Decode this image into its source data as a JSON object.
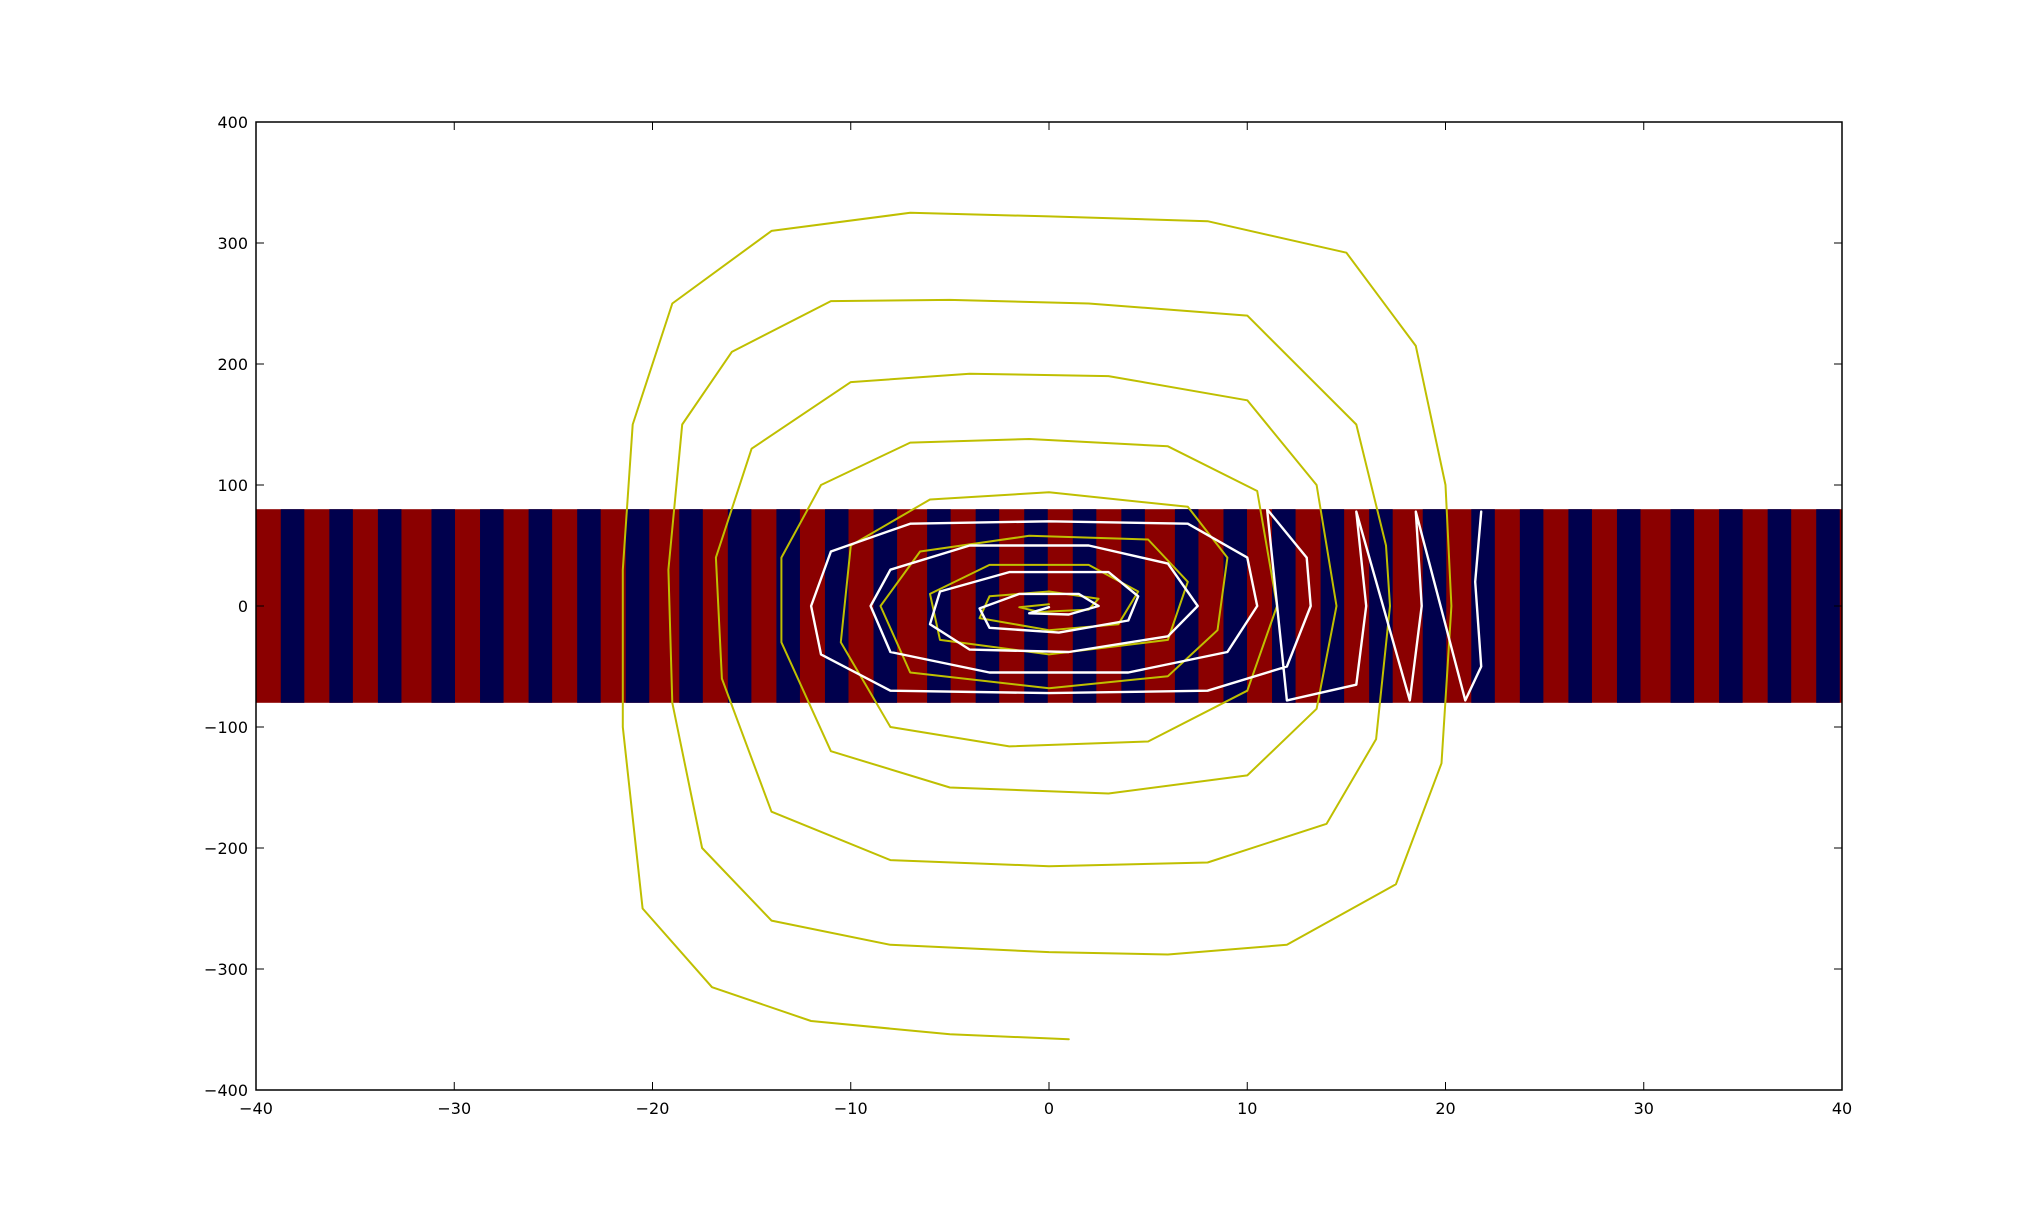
{
  "chart_data": {
    "type": "line",
    "title": "",
    "xlabel": "",
    "ylabel": "",
    "xlim": [
      -40,
      40
    ],
    "ylim": [
      -400,
      400
    ],
    "xticks": [
      -40,
      -30,
      -20,
      -10,
      0,
      10,
      20,
      30,
      40
    ],
    "yticks": [
      -400,
      -300,
      -200,
      -100,
      0,
      100,
      200,
      300,
      400
    ],
    "xtick_labels": [
      "−40",
      "−30",
      "−20",
      "−10",
      "0",
      "10",
      "20",
      "30",
      "40"
    ],
    "ytick_labels": [
      "−400",
      "−300",
      "−200",
      "−100",
      "0",
      "100",
      "200",
      "300",
      "400"
    ],
    "grid": false,
    "background_band": {
      "type": "heatmap",
      "x_range": [
        -40,
        40
      ],
      "y_range": [
        -80,
        80
      ],
      "colors": [
        "#8b0000",
        "#00004d"
      ],
      "pattern": "alternating vertical stripes following the spiral level sets"
    },
    "series": [
      {
        "color": "#bfbf00",
        "kind": "outer spiral",
        "points": [
          [
            1,
            -358
          ],
          [
            -5,
            -354
          ],
          [
            -12,
            -343
          ],
          [
            -17,
            -315
          ],
          [
            -20.5,
            -250
          ],
          [
            -21.5,
            -100
          ],
          [
            -21.5,
            30
          ],
          [
            -21,
            150
          ],
          [
            -19,
            250
          ],
          [
            -14,
            310
          ],
          [
            -7,
            325
          ],
          [
            0,
            322
          ],
          [
            8,
            318
          ],
          [
            15,
            292
          ],
          [
            18.5,
            215
          ],
          [
            20,
            100
          ],
          [
            20.3,
            0
          ],
          [
            19.8,
            -130
          ],
          [
            17.5,
            -230
          ],
          [
            12,
            -280
          ],
          [
            6,
            -288
          ],
          [
            0,
            -286
          ],
          [
            -8,
            -280
          ],
          [
            -14,
            -260
          ],
          [
            -17.5,
            -200
          ],
          [
            -19,
            -80
          ],
          [
            -19.2,
            30
          ],
          [
            -18.5,
            150
          ],
          [
            -16,
            210
          ],
          [
            -11,
            252
          ],
          [
            -5,
            253
          ],
          [
            2,
            250
          ],
          [
            10,
            240
          ],
          [
            15.5,
            150
          ],
          [
            17,
            50
          ],
          [
            17.2,
            0
          ],
          [
            16.5,
            -110
          ],
          [
            14,
            -180
          ],
          [
            8,
            -212
          ],
          [
            0,
            -215
          ],
          [
            -8,
            -210
          ],
          [
            -14,
            -170
          ],
          [
            -16.5,
            -60
          ],
          [
            -16.8,
            40
          ],
          [
            -15,
            130
          ],
          [
            -10,
            185
          ],
          [
            -4,
            192
          ],
          [
            3,
            190
          ],
          [
            10,
            170
          ],
          [
            13.5,
            100
          ],
          [
            14.5,
            0
          ],
          [
            13.5,
            -85
          ],
          [
            10,
            -140
          ],
          [
            3,
            -155
          ],
          [
            -5,
            -150
          ],
          [
            -11,
            -120
          ],
          [
            -13.5,
            -30
          ],
          [
            -13.5,
            40
          ],
          [
            -11.5,
            100
          ],
          [
            -7,
            135
          ],
          [
            -1,
            138
          ],
          [
            6,
            132
          ],
          [
            10.5,
            95
          ],
          [
            11.5,
            0
          ],
          [
            10,
            -70
          ],
          [
            5,
            -112
          ],
          [
            -2,
            -116
          ],
          [
            -8,
            -100
          ],
          [
            -10.5,
            -30
          ],
          [
            -10,
            50
          ],
          [
            -6,
            88
          ],
          [
            0,
            94
          ],
          [
            7,
            82
          ],
          [
            9,
            40
          ],
          [
            8.5,
            -20
          ],
          [
            6,
            -58
          ],
          [
            0,
            -68
          ],
          [
            -7,
            -55
          ],
          [
            -8.5,
            0
          ],
          [
            -6.5,
            45
          ],
          [
            -1,
            58
          ],
          [
            5,
            55
          ],
          [
            7,
            20
          ],
          [
            6,
            -28
          ],
          [
            0,
            -40
          ],
          [
            -5.5,
            -28
          ],
          [
            -6,
            10
          ],
          [
            -3,
            34
          ],
          [
            2,
            34
          ],
          [
            4.5,
            12
          ],
          [
            3.5,
            -15
          ],
          [
            0,
            -20
          ],
          [
            -3.5,
            -10
          ],
          [
            -3,
            8
          ],
          [
            0,
            12
          ],
          [
            2.5,
            6
          ],
          [
            2,
            -3
          ],
          [
            -0.5,
            -5
          ],
          [
            -1.5,
            -1
          ],
          [
            0,
            1.5
          ]
        ]
      },
      {
        "color": "#ffffff",
        "kind": "inner spiral",
        "points": [
          [
            21.8,
            78
          ],
          [
            21.5,
            20
          ],
          [
            21.8,
            -50
          ],
          [
            21,
            -78
          ],
          [
            18.5,
            78
          ],
          [
            18.8,
            0
          ],
          [
            18.2,
            -78
          ],
          [
            15.5,
            78
          ],
          [
            16,
            0
          ],
          [
            15.5,
            -65
          ],
          [
            12,
            -78
          ],
          [
            11,
            80
          ],
          [
            13,
            40
          ],
          [
            13.2,
            0
          ],
          [
            12,
            -50
          ],
          [
            8,
            -70
          ],
          [
            0,
            -72
          ],
          [
            -8,
            -70
          ],
          [
            -11.5,
            -40
          ],
          [
            -12,
            0
          ],
          [
            -11,
            45
          ],
          [
            -7,
            68
          ],
          [
            0,
            70
          ],
          [
            7,
            68
          ],
          [
            10,
            40
          ],
          [
            10.5,
            0
          ],
          [
            9,
            -38
          ],
          [
            4,
            -55
          ],
          [
            -3,
            -55
          ],
          [
            -8,
            -38
          ],
          [
            -9,
            0
          ],
          [
            -8,
            30
          ],
          [
            -4,
            50
          ],
          [
            2,
            50
          ],
          [
            6,
            35
          ],
          [
            7.5,
            0
          ],
          [
            6,
            -25
          ],
          [
            1,
            -38
          ],
          [
            -4,
            -36
          ],
          [
            -6,
            -15
          ],
          [
            -5.5,
            12
          ],
          [
            -2,
            28
          ],
          [
            3,
            28
          ],
          [
            4.5,
            8
          ],
          [
            4,
            -12
          ],
          [
            0.5,
            -22
          ],
          [
            -3,
            -18
          ],
          [
            -3.5,
            -2
          ],
          [
            -1.5,
            10
          ],
          [
            1.5,
            10
          ],
          [
            2.5,
            0
          ],
          [
            1,
            -7
          ],
          [
            -1,
            -6
          ],
          [
            0,
            -1
          ]
        ]
      }
    ]
  }
}
